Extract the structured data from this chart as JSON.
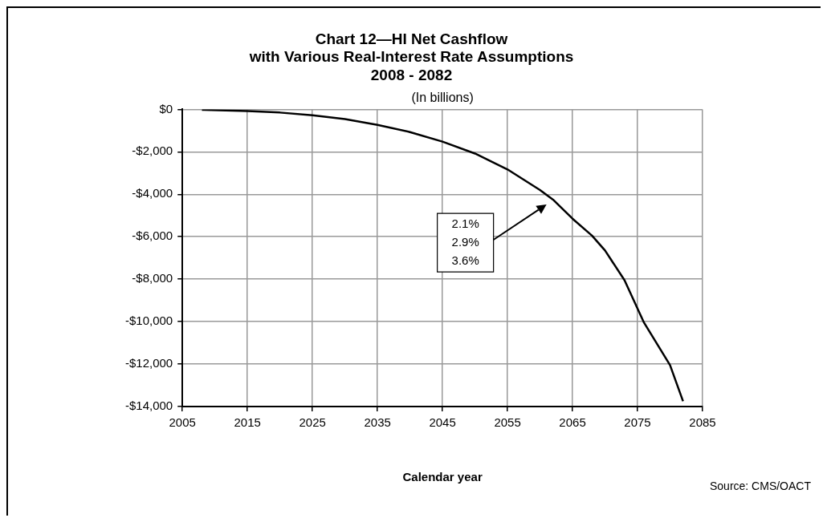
{
  "chart_data": {
    "type": "line",
    "title": "Chart 12—HI Net Cashflow\nwith Various Real-Interest Rate Assumptions\n2008 - 2082",
    "subtitle": "(In billions)",
    "xlabel": "Calendar year",
    "x": [
      2008,
      2015,
      2020,
      2025,
      2030,
      2035,
      2040,
      2045,
      2050,
      2055,
      2060,
      2062,
      2065,
      2068,
      2070,
      2073,
      2076,
      2080,
      2082
    ],
    "series": [
      {
        "color": "#000000",
        "values": [
          -20,
          -80,
          -150,
          -280,
          -460,
          -730,
          -1070,
          -1520,
          -2080,
          -2830,
          -3800,
          -4250,
          -5150,
          -5950,
          -6650,
          -8050,
          -10050,
          -12050,
          -13750
        ]
      }
    ],
    "xlim": [
      2005,
      2085
    ],
    "xticks": [
      2005,
      2015,
      2025,
      2035,
      2045,
      2055,
      2065,
      2075,
      2085
    ],
    "ylim": [
      -14000,
      0
    ],
    "yticks": [
      {
        "value": 0,
        "label": "$0"
      },
      {
        "value": -2000,
        "label": "-$2,000"
      },
      {
        "value": -4000,
        "label": "-$4,000"
      },
      {
        "value": -6000,
        "label": "-$6,000"
      },
      {
        "value": -8000,
        "label": "-$8,000"
      },
      {
        "value": -10000,
        "label": "-$10,000"
      },
      {
        "value": -12000,
        "label": "-$12,000"
      },
      {
        "value": -14000,
        "label": "-$14,000"
      }
    ],
    "grid": true,
    "legend": false,
    "marker": "none",
    "line_style": "solid",
    "annotations": [
      "2.1%\n2.9%\n3.6%",
      "Source: CMS/OACT"
    ]
  }
}
